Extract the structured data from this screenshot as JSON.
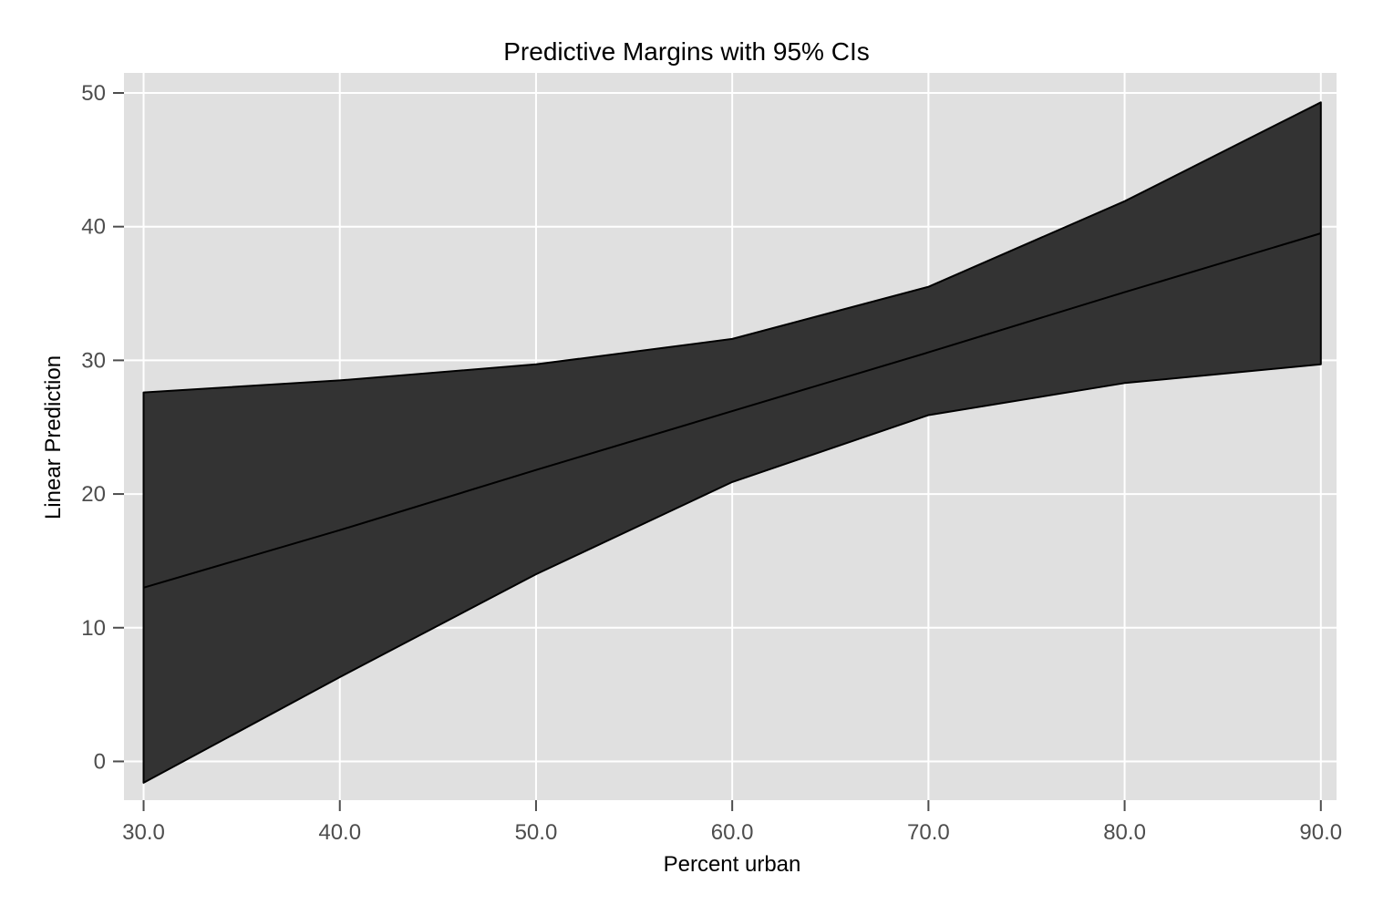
{
  "chart_data": {
    "type": "area",
    "title": "Predictive Margins with 95% CIs",
    "xlabel": "Percent urban",
    "ylabel": "Linear Prediction",
    "x": [
      30,
      40,
      50,
      60,
      70,
      80,
      90
    ],
    "x_tick_labels": [
      "30.0",
      "40.0",
      "50.0",
      "60.0",
      "70.0",
      "80.0",
      "90.0"
    ],
    "y_ticks": [
      0,
      10,
      20,
      30,
      40,
      50
    ],
    "y_tick_labels": [
      "0",
      "10",
      "20",
      "30",
      "40",
      "50"
    ],
    "xlim": [
      29,
      90.8
    ],
    "ylim": [
      -2.9,
      51.5
    ],
    "grid": true,
    "legend": "none",
    "series": [
      {
        "role": "prediction",
        "values": [
          13.0,
          17.3,
          21.8,
          26.2,
          30.6,
          35.1,
          39.5
        ]
      },
      {
        "role": "ci-lower",
        "values": [
          -1.6,
          6.3,
          14.0,
          20.9,
          25.9,
          28.3,
          29.7
        ]
      },
      {
        "role": "ci-upper",
        "values": [
          27.6,
          28.5,
          29.7,
          31.6,
          35.5,
          41.9,
          49.3
        ]
      }
    ],
    "colors": {
      "plot_background": "#e0e0e0",
      "gridline": "#ffffff",
      "band_fill": "#333333",
      "line": "#000000",
      "tick_color": "#4d4d4d"
    }
  }
}
